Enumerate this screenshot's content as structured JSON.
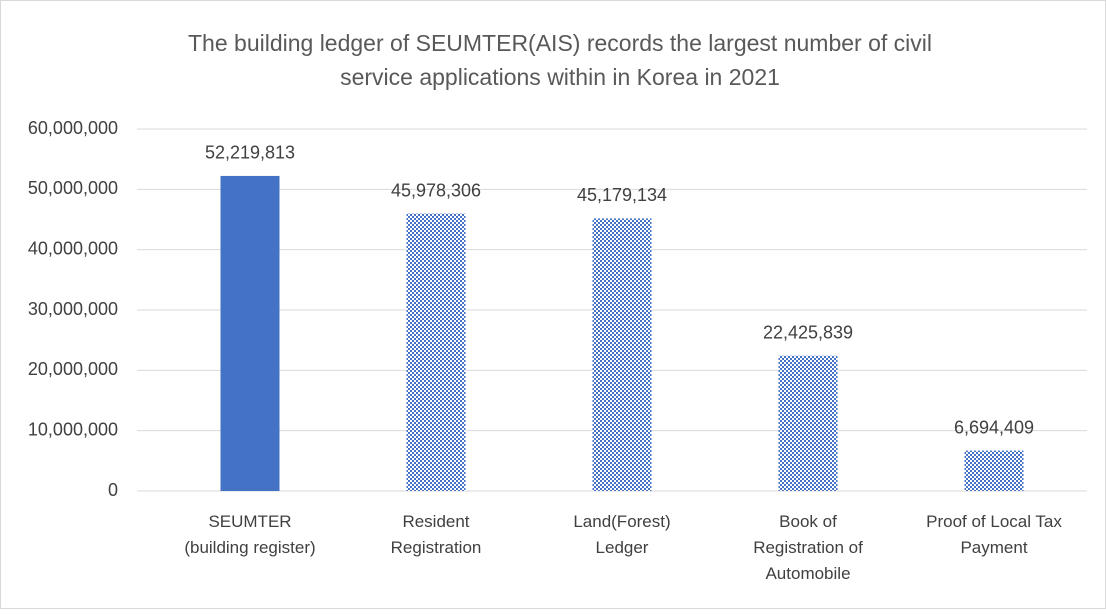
{
  "chart_data": {
    "type": "bar",
    "title": "The building ledger of SEUMTER(AIS) records the largest number of civil\nservice applications within in Korea in 2021",
    "categories": [
      "SEUMTER\n(building register)",
      "Resident\nRegistration",
      "Land(Forest)\nLedger",
      "Book of\nRegistration of\nAutomobile",
      "Proof of Local Tax\nPayment"
    ],
    "values": [
      52219813,
      45978306,
      45179134,
      22425839,
      6694409
    ],
    "value_labels": [
      "52,219,813",
      "45,978,306",
      "45,179,134",
      "22,425,839",
      "6,694,409"
    ],
    "colors": [
      "#4472c4",
      "#4472c4",
      "#4472c4",
      "#4472c4",
      "#4472c4"
    ],
    "fills": [
      "solid",
      "pattern",
      "pattern",
      "pattern",
      "pattern"
    ],
    "ylim": [
      0,
      60000000
    ],
    "yticks": [
      0,
      {
        "value": 10000000,
        "label": "10,000,000"
      },
      {
        "value": 20000000,
        "label": "20,000,000"
      },
      {
        "value": 30000000,
        "label": "30,000,000"
      },
      {
        "value": 40000000,
        "label": "40,000,000"
      },
      {
        "value": 50000000,
        "label": "50,000,000"
      },
      {
        "value": 60000000,
        "label": "60,000,000"
      }
    ],
    "grid": true
  }
}
